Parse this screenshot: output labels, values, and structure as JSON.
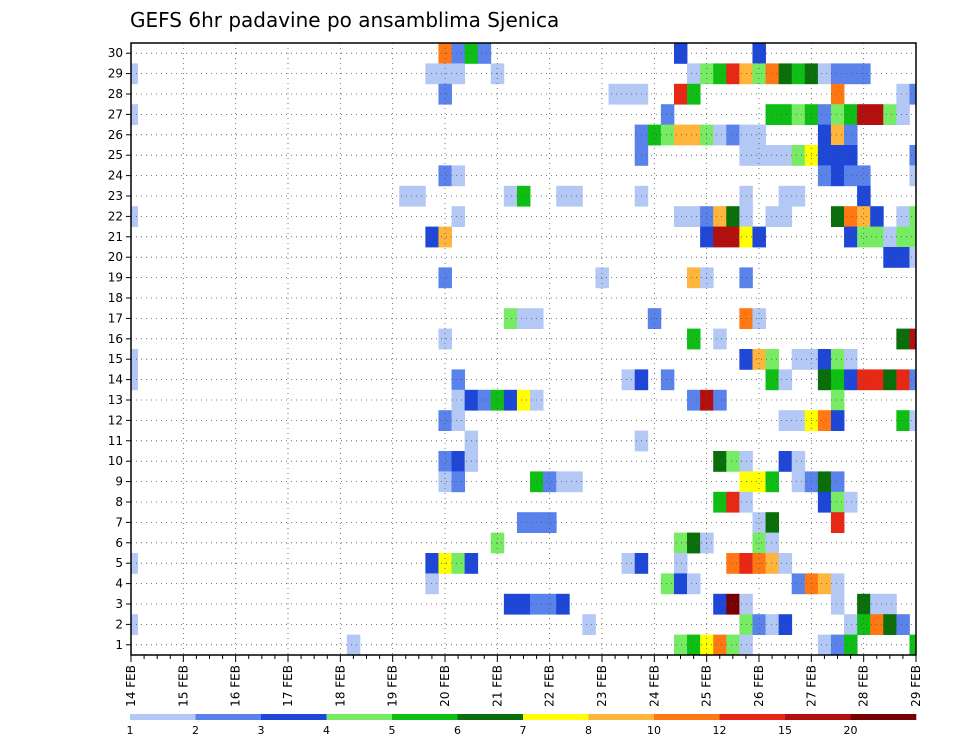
{
  "chart_data": {
    "type": "heatmap",
    "title": "GEFS 6hr padavine po ansamblima Sjenica",
    "x_start": "2024-02-14T00:00",
    "x_step_hours": 6,
    "x_count": 61,
    "x_ticks": [
      "14 FEB",
      "15 FEB",
      "16 FEB",
      "17 FEB",
      "18 FEB",
      "19 FEB",
      "20 FEB",
      "21 FEB",
      "22 FEB",
      "23 FEB",
      "24 FEB",
      "25 FEB",
      "26 FEB",
      "27 FEB",
      "28 FEB",
      "29 FEB"
    ],
    "y_ticks": [
      "1",
      "2",
      "3",
      "4",
      "5",
      "6",
      "7",
      "8",
      "9",
      "10",
      "11",
      "12",
      "13",
      "14",
      "15",
      "16",
      "17",
      "18",
      "19",
      "20",
      "21",
      "22",
      "23",
      "24",
      "25",
      "26",
      "27",
      "28",
      "29",
      "30"
    ],
    "grid": true,
    "colorbar": {
      "position": "bottom",
      "labels": [
        "1",
        "2",
        "3",
        "4",
        "5",
        "6",
        "7",
        "8",
        "10",
        "12",
        "15",
        "20"
      ],
      "colors": [
        "#b4c8f5",
        "#5a82eb",
        "#1e46d7",
        "#78eb64",
        "#0fbe14",
        "#0a6e0a",
        "#ffff00",
        "#ffb43c",
        "#ff7814",
        "#e62814",
        "#b40f0f",
        "#780000"
      ]
    },
    "cells": [
      [
        30,
        24,
        8
      ],
      [
        30,
        25,
        1
      ],
      [
        30,
        26,
        4
      ],
      [
        30,
        27,
        1
      ],
      [
        30,
        42,
        2
      ],
      [
        30,
        48,
        2
      ],
      [
        29,
        0,
        0
      ],
      [
        29,
        23,
        0
      ],
      [
        29,
        24,
        0
      ],
      [
        29,
        25,
        0
      ],
      [
        29,
        28,
        0
      ],
      [
        29,
        43,
        0
      ],
      [
        29,
        44,
        3
      ],
      [
        29,
        45,
        4
      ],
      [
        29,
        46,
        9
      ],
      [
        29,
        47,
        7
      ],
      [
        29,
        48,
        3
      ],
      [
        29,
        49,
        8
      ],
      [
        29,
        50,
        5
      ],
      [
        29,
        51,
        4
      ],
      [
        29,
        52,
        5
      ],
      [
        29,
        53,
        0
      ],
      [
        29,
        54,
        1
      ],
      [
        29,
        55,
        1
      ],
      [
        29,
        56,
        1
      ],
      [
        28,
        24,
        1
      ],
      [
        28,
        37,
        0
      ],
      [
        28,
        38,
        0
      ],
      [
        28,
        39,
        0
      ],
      [
        28,
        42,
        9
      ],
      [
        28,
        43,
        4
      ],
      [
        28,
        54,
        8
      ],
      [
        28,
        59,
        0
      ],
      [
        28,
        60,
        1
      ],
      [
        27,
        0,
        0
      ],
      [
        27,
        41,
        1
      ],
      [
        27,
        49,
        4
      ],
      [
        27,
        50,
        4
      ],
      [
        27,
        51,
        3
      ],
      [
        27,
        52,
        4
      ],
      [
        27,
        53,
        1
      ],
      [
        27,
        54,
        3
      ],
      [
        27,
        55,
        4
      ],
      [
        27,
        56,
        10
      ],
      [
        27,
        57,
        10
      ],
      [
        27,
        58,
        3
      ],
      [
        27,
        59,
        0
      ],
      [
        26,
        39,
        1
      ],
      [
        26,
        40,
        4
      ],
      [
        26,
        41,
        3
      ],
      [
        26,
        42,
        7
      ],
      [
        26,
        43,
        7
      ],
      [
        26,
        44,
        3
      ],
      [
        26,
        45,
        0
      ],
      [
        26,
        46,
        1
      ],
      [
        26,
        47,
        0
      ],
      [
        26,
        48,
        0
      ],
      [
        26,
        53,
        2
      ],
      [
        26,
        54,
        7
      ],
      [
        26,
        55,
        1
      ],
      [
        25,
        39,
        1
      ],
      [
        25,
        47,
        0
      ],
      [
        25,
        48,
        0
      ],
      [
        25,
        49,
        0
      ],
      [
        25,
        50,
        0
      ],
      [
        25,
        51,
        3
      ],
      [
        25,
        52,
        6
      ],
      [
        25,
        53,
        2
      ],
      [
        25,
        54,
        2
      ],
      [
        25,
        55,
        2
      ],
      [
        25,
        60,
        1
      ],
      [
        24,
        24,
        1
      ],
      [
        24,
        25,
        0
      ],
      [
        24,
        53,
        1
      ],
      [
        24,
        54,
        2
      ],
      [
        24,
        55,
        1
      ],
      [
        24,
        56,
        1
      ],
      [
        24,
        60,
        0
      ],
      [
        23,
        21,
        0
      ],
      [
        23,
        22,
        0
      ],
      [
        23,
        29,
        0
      ],
      [
        23,
        30,
        4
      ],
      [
        23,
        33,
        0
      ],
      [
        23,
        34,
        0
      ],
      [
        23,
        39,
        0
      ],
      [
        23,
        47,
        0
      ],
      [
        23,
        50,
        0
      ],
      [
        23,
        51,
        0
      ],
      [
        23,
        56,
        2
      ],
      [
        22,
        0,
        0
      ],
      [
        22,
        25,
        0
      ],
      [
        22,
        42,
        0
      ],
      [
        22,
        43,
        0
      ],
      [
        22,
        44,
        1
      ],
      [
        22,
        45,
        7
      ],
      [
        22,
        46,
        5
      ],
      [
        22,
        47,
        0
      ],
      [
        22,
        49,
        0
      ],
      [
        22,
        50,
        0
      ],
      [
        22,
        54,
        5
      ],
      [
        22,
        55,
        8
      ],
      [
        22,
        56,
        7
      ],
      [
        22,
        57,
        2
      ],
      [
        22,
        59,
        0
      ],
      [
        22,
        60,
        3
      ],
      [
        21,
        23,
        2
      ],
      [
        21,
        24,
        7
      ],
      [
        21,
        44,
        2
      ],
      [
        21,
        45,
        10
      ],
      [
        21,
        46,
        10
      ],
      [
        21,
        47,
        6
      ],
      [
        21,
        48,
        2
      ],
      [
        21,
        55,
        2
      ],
      [
        21,
        56,
        3
      ],
      [
        21,
        57,
        3
      ],
      [
        21,
        58,
        0
      ],
      [
        21,
        59,
        3
      ],
      [
        21,
        60,
        3
      ],
      [
        20,
        58,
        2
      ],
      [
        20,
        59,
        2
      ],
      [
        20,
        60,
        0
      ],
      [
        19,
        24,
        1
      ],
      [
        19,
        36,
        0
      ],
      [
        19,
        43,
        7
      ],
      [
        19,
        44,
        0
      ],
      [
        19,
        47,
        1
      ],
      [
        17,
        29,
        3
      ],
      [
        17,
        30,
        0
      ],
      [
        17,
        31,
        0
      ],
      [
        17,
        40,
        1
      ],
      [
        17,
        47,
        8
      ],
      [
        17,
        48,
        0
      ],
      [
        16,
        24,
        0
      ],
      [
        16,
        43,
        4
      ],
      [
        16,
        45,
        0
      ],
      [
        16,
        59,
        5
      ],
      [
        16,
        60,
        10
      ],
      [
        15,
        0,
        0
      ],
      [
        15,
        47,
        2
      ],
      [
        15,
        48,
        7
      ],
      [
        15,
        49,
        3
      ],
      [
        15,
        51,
        0
      ],
      [
        15,
        52,
        0
      ],
      [
        15,
        53,
        2
      ],
      [
        15,
        54,
        3
      ],
      [
        15,
        55,
        0
      ],
      [
        14,
        0,
        0
      ],
      [
        14,
        25,
        1
      ],
      [
        14,
        38,
        0
      ],
      [
        14,
        39,
        2
      ],
      [
        14,
        41,
        1
      ],
      [
        14,
        49,
        4
      ],
      [
        14,
        50,
        0
      ],
      [
        14,
        53,
        5
      ],
      [
        14,
        54,
        4
      ],
      [
        14,
        55,
        2
      ],
      [
        14,
        56,
        9
      ],
      [
        14,
        57,
        9
      ],
      [
        14,
        58,
        5
      ],
      [
        14,
        59,
        9
      ],
      [
        14,
        60,
        1
      ],
      [
        13,
        25,
        0
      ],
      [
        13,
        26,
        2
      ],
      [
        13,
        27,
        1
      ],
      [
        13,
        28,
        4
      ],
      [
        13,
        29,
        2
      ],
      [
        13,
        30,
        6
      ],
      [
        13,
        31,
        0
      ],
      [
        13,
        43,
        1
      ],
      [
        13,
        44,
        10
      ],
      [
        13,
        45,
        1
      ],
      [
        13,
        54,
        3
      ],
      [
        12,
        24,
        1
      ],
      [
        12,
        25,
        0
      ],
      [
        12,
        50,
        0
      ],
      [
        12,
        51,
        0
      ],
      [
        12,
        52,
        6
      ],
      [
        12,
        53,
        8
      ],
      [
        12,
        54,
        2
      ],
      [
        12,
        59,
        4
      ],
      [
        12,
        60,
        0
      ],
      [
        11,
        26,
        0
      ],
      [
        11,
        39,
        0
      ],
      [
        10,
        24,
        1
      ],
      [
        10,
        25,
        2
      ],
      [
        10,
        26,
        0
      ],
      [
        10,
        45,
        5
      ],
      [
        10,
        46,
        3
      ],
      [
        10,
        47,
        0
      ],
      [
        10,
        50,
        2
      ],
      [
        10,
        51,
        0
      ],
      [
        9,
        24,
        0
      ],
      [
        9,
        25,
        1
      ],
      [
        9,
        31,
        4
      ],
      [
        9,
        32,
        1
      ],
      [
        9,
        33,
        0
      ],
      [
        9,
        34,
        0
      ],
      [
        9,
        47,
        6
      ],
      [
        9,
        48,
        6
      ],
      [
        9,
        49,
        4
      ],
      [
        9,
        51,
        0
      ],
      [
        9,
        52,
        1
      ],
      [
        9,
        53,
        5
      ],
      [
        9,
        54,
        1
      ],
      [
        8,
        45,
        4
      ],
      [
        8,
        46,
        9
      ],
      [
        8,
        47,
        0
      ],
      [
        8,
        53,
        2
      ],
      [
        8,
        54,
        3
      ],
      [
        8,
        55,
        0
      ],
      [
        7,
        30,
        1
      ],
      [
        7,
        31,
        1
      ],
      [
        7,
        32,
        1
      ],
      [
        7,
        48,
        0
      ],
      [
        7,
        49,
        5
      ],
      [
        7,
        54,
        9
      ],
      [
        6,
        28,
        3
      ],
      [
        6,
        42,
        3
      ],
      [
        6,
        43,
        5
      ],
      [
        6,
        44,
        0
      ],
      [
        6,
        48,
        3
      ],
      [
        6,
        49,
        0
      ],
      [
        5,
        0,
        0
      ],
      [
        5,
        23,
        2
      ],
      [
        5,
        24,
        6
      ],
      [
        5,
        25,
        3
      ],
      [
        5,
        26,
        2
      ],
      [
        5,
        38,
        0
      ],
      [
        5,
        39,
        2
      ],
      [
        5,
        42,
        0
      ],
      [
        5,
        46,
        8
      ],
      [
        5,
        47,
        9
      ],
      [
        5,
        48,
        8
      ],
      [
        5,
        49,
        7
      ],
      [
        5,
        50,
        0
      ],
      [
        4,
        23,
        0
      ],
      [
        4,
        41,
        3
      ],
      [
        4,
        42,
        2
      ],
      [
        4,
        43,
        0
      ],
      [
        4,
        51,
        1
      ],
      [
        4,
        52,
        8
      ],
      [
        4,
        53,
        7
      ],
      [
        4,
        54,
        0
      ],
      [
        3,
        29,
        2
      ],
      [
        3,
        30,
        2
      ],
      [
        3,
        31,
        1
      ],
      [
        3,
        32,
        1
      ],
      [
        3,
        33,
        2
      ],
      [
        3,
        45,
        2
      ],
      [
        3,
        46,
        11
      ],
      [
        3,
        47,
        0
      ],
      [
        3,
        54,
        0
      ],
      [
        3,
        56,
        5
      ],
      [
        3,
        57,
        0
      ],
      [
        3,
        58,
        0
      ],
      [
        2,
        0,
        0
      ],
      [
        2,
        35,
        0
      ],
      [
        2,
        47,
        3
      ],
      [
        2,
        48,
        1
      ],
      [
        2,
        49,
        0
      ],
      [
        2,
        50,
        2
      ],
      [
        2,
        55,
        0
      ],
      [
        2,
        56,
        4
      ],
      [
        2,
        57,
        8
      ],
      [
        2,
        58,
        5
      ],
      [
        2,
        59,
        1
      ],
      [
        1,
        17,
        0
      ],
      [
        1,
        42,
        3
      ],
      [
        1,
        43,
        4
      ],
      [
        1,
        44,
        6
      ],
      [
        1,
        45,
        8
      ],
      [
        1,
        46,
        3
      ],
      [
        1,
        47,
        0
      ],
      [
        1,
        53,
        0
      ],
      [
        1,
        54,
        1
      ],
      [
        1,
        55,
        4
      ],
      [
        1,
        60,
        4
      ]
    ]
  }
}
